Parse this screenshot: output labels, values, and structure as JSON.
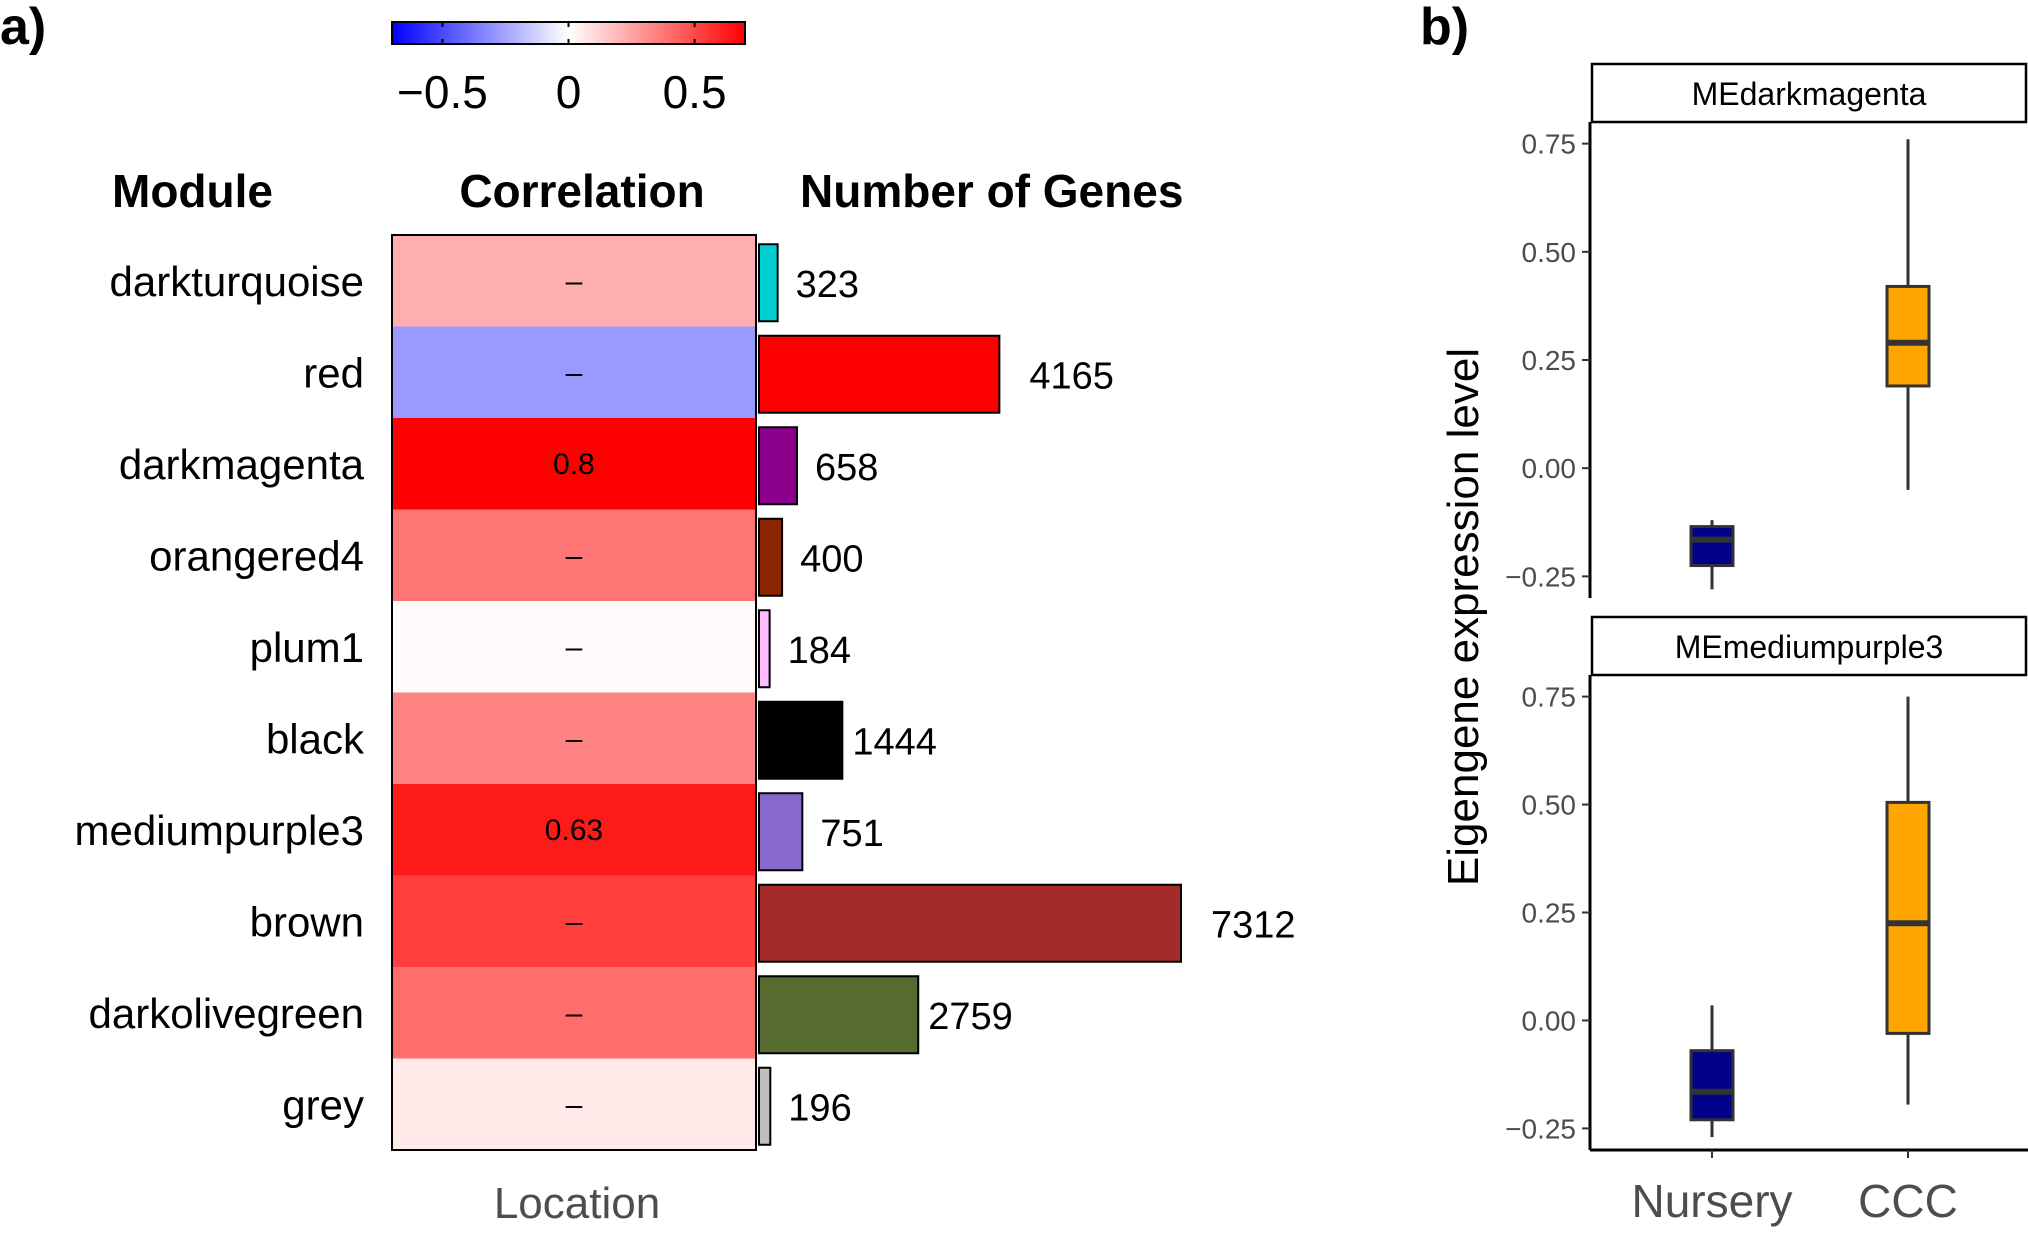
{
  "panels": {
    "a_label": "a)",
    "b_label": "b)"
  },
  "colors": {
    "neg": "#0000ff",
    "mid": "#ffffff",
    "pos": "#ff0000",
    "box_nursery": "#00008b",
    "box_ccc": "#ffa500"
  },
  "chart_data": [
    {
      "type": "heatmap",
      "headers": {
        "module": "Module",
        "correlation": "Correlation",
        "genes": "Number of Genes"
      },
      "xlabel": "Location",
      "colorbar": {
        "range": [
          -0.7,
          0.7
        ],
        "ticks": [
          -0.5,
          0,
          0.5
        ],
        "tick_labels": [
          "−0.5",
          "0",
          "0.5"
        ]
      },
      "modules": [
        {
          "name": "darkturquoise",
          "corr": 0.22,
          "label": "–",
          "genes": 323,
          "color": "#00ced1"
        },
        {
          "name": "red",
          "corr": -0.28,
          "label": "–",
          "genes": 4165,
          "color": "#ff0000"
        },
        {
          "name": "darkmagenta",
          "corr": 0.8,
          "label": "0.8",
          "genes": 658,
          "color": "#8b008b"
        },
        {
          "name": "orangered4",
          "corr": 0.38,
          "label": "–",
          "genes": 400,
          "color": "#8b2500"
        },
        {
          "name": "plum1",
          "corr": 0.01,
          "label": "–",
          "genes": 184,
          "color": "#ffbbff"
        },
        {
          "name": "black",
          "corr": 0.34,
          "label": "–",
          "genes": 1444,
          "color": "#000000"
        },
        {
          "name": "mediumpurple3",
          "corr": 0.63,
          "label": "0.63",
          "genes": 751,
          "color": "#8968cd"
        },
        {
          "name": "brown",
          "corr": 0.53,
          "label": "–",
          "genes": 7312,
          "color": "#a52a2a"
        },
        {
          "name": "darkolivegreen",
          "corr": 0.4,
          "label": "–",
          "genes": 2759,
          "color": "#556b2f"
        },
        {
          "name": "grey",
          "corr": 0.06,
          "label": "–",
          "genes": 196,
          "color": "#bebebe"
        }
      ]
    },
    {
      "type": "box",
      "ylabel": "Eigengene expression level",
      "categories": [
        "Nursery",
        "CCC"
      ],
      "ylim": [
        -0.3,
        0.8
      ],
      "yticks": [
        -0.25,
        0,
        0.25,
        0.5,
        0.75
      ],
      "ytick_labels": [
        "−0.25",
        "0.00",
        "0.25",
        "0.50",
        "0.75"
      ],
      "facets": [
        {
          "title": "MEdarkmagenta",
          "boxes": [
            {
              "category": "Nursery",
              "min": -0.28,
              "q1": -0.225,
              "median": -0.165,
              "q3": -0.135,
              "max": -0.12
            },
            {
              "category": "CCC",
              "min": -0.05,
              "q1": 0.19,
              "median": 0.29,
              "q3": 0.42,
              "max": 0.76
            }
          ]
        },
        {
          "title": "MEmediumpurple3",
          "boxes": [
            {
              "category": "Nursery",
              "min": -0.27,
              "q1": -0.23,
              "median": -0.165,
              "q3": -0.07,
              "max": 0.035
            },
            {
              "category": "CCC",
              "min": -0.195,
              "q1": -0.03,
              "median": 0.225,
              "q3": 0.505,
              "max": 0.75
            }
          ]
        }
      ]
    }
  ]
}
